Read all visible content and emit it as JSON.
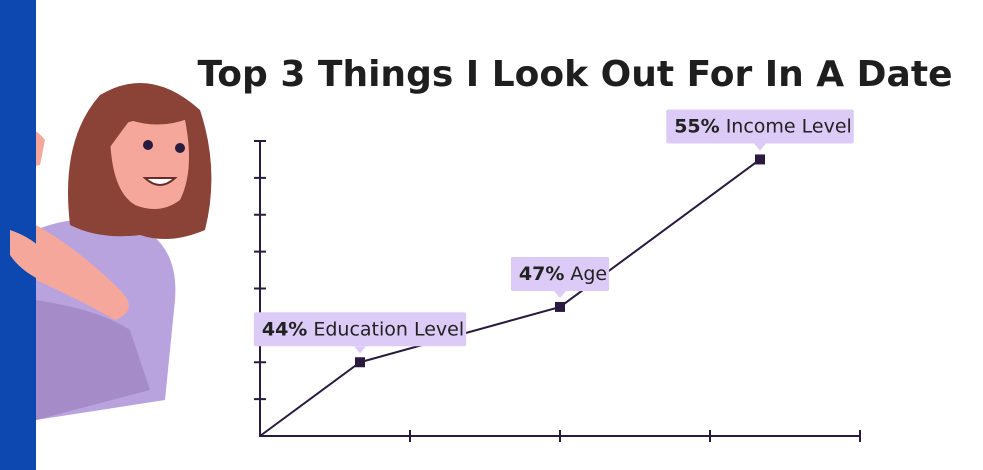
{
  "chart_data": {
    "type": "line",
    "title": "Top 3 Things I Look Out For In A Date",
    "categories": [
      "Education Level",
      "Age",
      "Income Level"
    ],
    "values": [
      44,
      47,
      55
    ],
    "value_labels": [
      "44%",
      "47%",
      "55%"
    ],
    "color": "#2a1a3e",
    "label_color": "#dccbf7",
    "ylim": [
      40,
      56
    ],
    "yticks": [
      42,
      44,
      46,
      48,
      50,
      52,
      54,
      56
    ]
  }
}
